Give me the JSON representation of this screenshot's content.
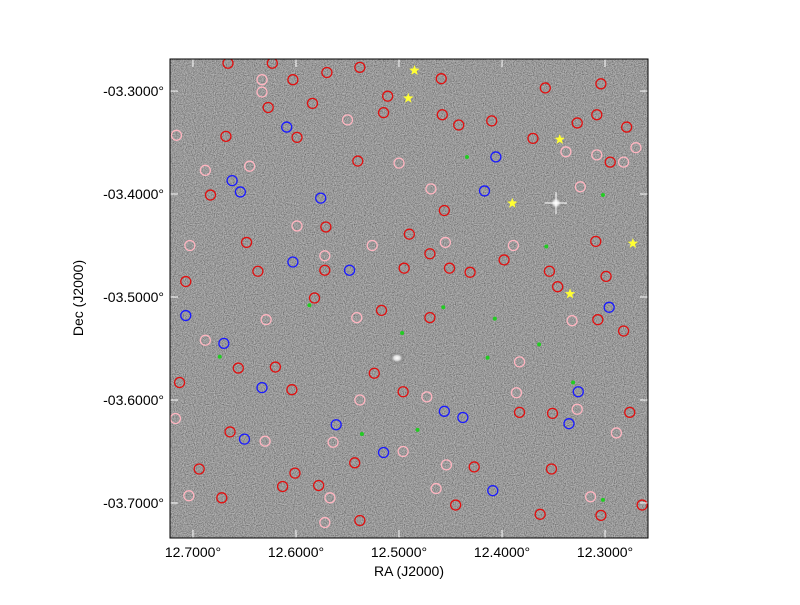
{
  "chart_data": {
    "type": "scatter",
    "xlabel": "RA (J2000)",
    "ylabel": "Dec (J2000)",
    "xlim": [
      12.7223,
      12.2583
    ],
    "ylim": [
      -3.734,
      -3.2689
    ],
    "xticks": [
      {
        "value": 12.7,
        "label": "12.7000°"
      },
      {
        "value": 12.6,
        "label": "12.6000°"
      },
      {
        "value": 12.5,
        "label": "12.5000°"
      },
      {
        "value": 12.4,
        "label": "12.4000°"
      },
      {
        "value": 12.3,
        "label": "12.3000°"
      }
    ],
    "yticks": [
      {
        "value": -3.3,
        "label": "-03.3000°"
      },
      {
        "value": -3.4,
        "label": "-03.4000°"
      },
      {
        "value": -3.5,
        "label": "-03.5000°"
      },
      {
        "value": -3.6,
        "label": "-03.6000°"
      },
      {
        "value": -3.7,
        "label": "-03.7000°"
      }
    ],
    "series": [
      {
        "color": "#e01010",
        "marker": "circle",
        "x": [
          12.666,
          12.623,
          12.603,
          12.57,
          12.538,
          12.511,
          12.459,
          12.584,
          12.515,
          12.458,
          12.442,
          12.358,
          12.304,
          12.308,
          12.279,
          12.327,
          12.668,
          12.599,
          12.54,
          12.683,
          12.41,
          12.37,
          12.456,
          12.49,
          12.571,
          12.648,
          12.637,
          12.572,
          12.495,
          12.47,
          12.451,
          12.431,
          12.398,
          12.354,
          12.346,
          12.309,
          12.299,
          12.707,
          12.582,
          12.517,
          12.47,
          12.307,
          12.282,
          12.656,
          12.62,
          12.524,
          12.713,
          12.604,
          12.496,
          12.383,
          12.351,
          12.276,
          12.664,
          12.601,
          12.543,
          12.427,
          12.352,
          12.694,
          12.672,
          12.613,
          12.578,
          12.538,
          12.445,
          12.363,
          12.304,
          12.264,
          12.627,
          12.295
        ],
        "y": [
          -3.273,
          -3.273,
          -3.289,
          -3.282,
          -3.277,
          -3.305,
          -3.288,
          -3.312,
          -3.321,
          -3.323,
          -3.333,
          -3.297,
          -3.293,
          -3.323,
          -3.335,
          -3.331,
          -3.344,
          -3.345,
          -3.368,
          -3.401,
          -3.329,
          -3.346,
          -3.416,
          -3.439,
          -3.432,
          -3.447,
          -3.475,
          -3.474,
          -3.472,
          -3.458,
          -3.472,
          -3.476,
          -3.464,
          -3.475,
          -3.49,
          -3.446,
          -3.48,
          -3.485,
          -3.501,
          -3.513,
          -3.52,
          -3.522,
          -3.533,
          -3.569,
          -3.568,
          -3.574,
          -3.583,
          -3.59,
          -3.592,
          -3.612,
          -3.613,
          -3.612,
          -3.631,
          -3.671,
          -3.661,
          -3.665,
          -3.667,
          -3.667,
          -3.695,
          -3.684,
          -3.683,
          -3.717,
          -3.702,
          -3.711,
          -3.712,
          -3.702,
          -3.316,
          -3.369
        ]
      },
      {
        "color": "#ffb6c1",
        "marker": "circle",
        "x": [
          12.716,
          12.633,
          12.633,
          12.688,
          12.645,
          12.599,
          12.55,
          12.5,
          12.469,
          12.526,
          12.455,
          12.389,
          12.338,
          12.308,
          12.282,
          12.324,
          12.703,
          12.572,
          12.629,
          12.541,
          12.688,
          12.538,
          12.383,
          12.386,
          12.473,
          12.63,
          12.564,
          12.496,
          12.464,
          12.327,
          12.289,
          12.717,
          12.704,
          12.567,
          12.572,
          12.454,
          12.314,
          12.332,
          12.27
        ],
        "y": [
          -3.343,
          -3.289,
          -3.301,
          -3.377,
          -3.373,
          -3.431,
          -3.328,
          -3.37,
          -3.395,
          -3.45,
          -3.447,
          -3.45,
          -3.359,
          -3.362,
          -3.369,
          -3.393,
          -3.45,
          -3.46,
          -3.522,
          -3.52,
          -3.542,
          -3.6,
          -3.563,
          -3.593,
          -3.597,
          -3.64,
          -3.641,
          -3.65,
          -3.686,
          -3.609,
          -3.632,
          -3.618,
          -3.693,
          -3.695,
          -3.719,
          -3.663,
          -3.694,
          -3.523,
          -3.355
        ]
      },
      {
        "color": "#1a1aff",
        "marker": "circle",
        "x": [
          12.609,
          12.662,
          12.654,
          12.576,
          12.406,
          12.417,
          12.603,
          12.548,
          12.707,
          12.67,
          12.633,
          12.561,
          12.515,
          12.456,
          12.438,
          12.326,
          12.335,
          12.409,
          12.65,
          12.296
        ],
        "y": [
          -3.335,
          -3.387,
          -3.398,
          -3.404,
          -3.364,
          -3.397,
          -3.466,
          -3.474,
          -3.518,
          -3.545,
          -3.588,
          -3.624,
          -3.651,
          -3.611,
          -3.617,
          -3.592,
          -3.623,
          -3.688,
          -3.638,
          -3.51
        ]
      },
      {
        "color": "#22cc22",
        "marker": "dot",
        "x": [
          12.434,
          12.302,
          12.357,
          12.587,
          12.457,
          12.407,
          12.497,
          12.364,
          12.674,
          12.414,
          12.482,
          12.536,
          12.302,
          12.331
        ],
        "y": [
          -3.364,
          -3.401,
          -3.451,
          -3.508,
          -3.51,
          -3.521,
          -3.535,
          -3.546,
          -3.558,
          -3.559,
          -3.629,
          -3.633,
          -3.697,
          -3.583
        ]
      },
      {
        "color": "#ffff33",
        "marker": "star",
        "x": [
          12.485,
          12.491,
          12.344,
          12.39,
          12.273,
          12.334
        ],
        "y": [
          -3.28,
          -3.307,
          -3.347,
          -3.409,
          -3.448,
          -3.497
        ]
      }
    ]
  }
}
